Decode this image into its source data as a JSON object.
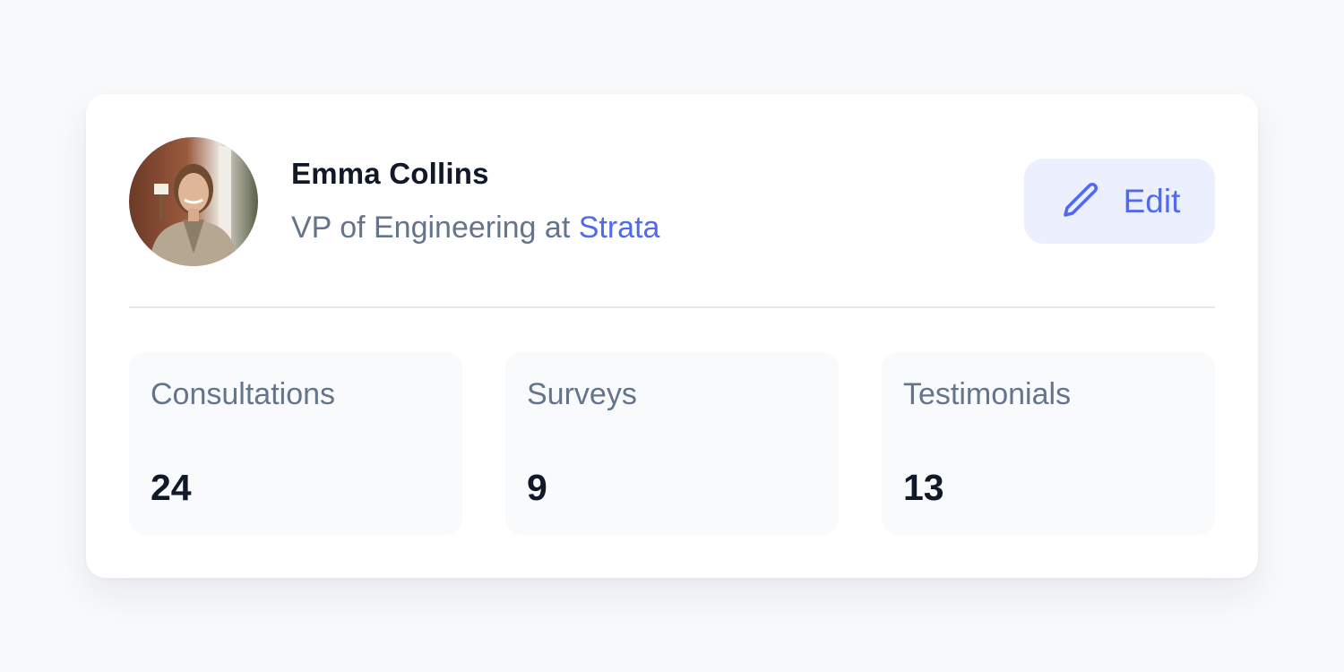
{
  "profile": {
    "name": "Emma Collins",
    "role_prefix": "VP of Engineering at ",
    "company": "Strata",
    "avatar_icon": "profile-photo"
  },
  "actions": {
    "edit_label": "Edit",
    "edit_icon": "pencil-icon"
  },
  "stats": [
    {
      "label": "Consultations",
      "value": "24"
    },
    {
      "label": "Surveys",
      "value": "9"
    },
    {
      "label": "Testimonials",
      "value": "13"
    }
  ],
  "colors": {
    "accent": "#4f6af0",
    "button_bg": "#eceffd",
    "text": "#111827",
    "muted": "#64748b"
  }
}
